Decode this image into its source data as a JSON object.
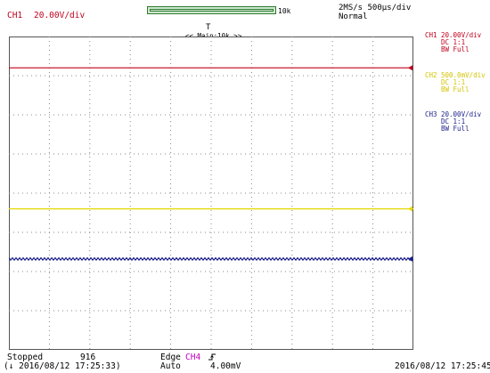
{
  "header": {
    "ch1_label": "CH1",
    "ch1_scale": "20.00V/div",
    "record_length": "10k",
    "sample_rate": "2MS/s 500µs/div",
    "trigger_mode": "Normal",
    "zoom_label": "<< Main:10k >>",
    "trigger_position_icon": "T"
  },
  "channels": [
    {
      "id": "ch1",
      "name": "CH1",
      "scale": "20.00V/div",
      "coupling": "DC  1:1",
      "bandwidth": "BW Full",
      "color": "#c0001c",
      "level_fraction": 0.9,
      "left_marker": "1"
    },
    {
      "id": "ch2",
      "name": "CH2",
      "scale": "500.0mV/div",
      "coupling": "DC  1:1",
      "bandwidth": "BW Full",
      "color": "#e6d800",
      "level_fraction": 0.45,
      "left_marker": "2"
    },
    {
      "id": "ch3",
      "name": "CH3",
      "scale": "20.00V/div",
      "coupling": "DC  1:1",
      "bandwidth": "BW Full",
      "color": "#1a1f8a",
      "level_fraction": 0.29,
      "left_marker": "3"
    }
  ],
  "status": {
    "state": "Stopped",
    "acquisitions": "916",
    "trigger_type": "Edge",
    "trigger_source": "CH4",
    "trigger_slope_icon": "rising-edge-icon",
    "trigger_mode": "Auto",
    "trigger_level": "4.00mV",
    "timestamp_left": "(↓ 2016/08/12 17:25:33)",
    "timestamp_right": "2016/08/12 17:25:45"
  },
  "trigger_marker_level_fraction": 0.9
}
